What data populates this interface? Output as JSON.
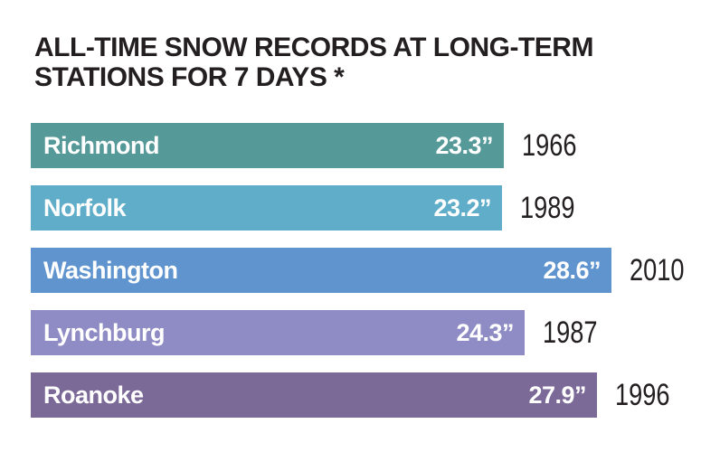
{
  "title": {
    "line1": "ALL-TIME SNOW RECORDS AT LONG-TERM",
    "line2": "STATIONS FOR 7 DAYS *"
  },
  "chart_data": {
    "type": "bar",
    "orientation": "horizontal",
    "title": "ALL-TIME SNOW RECORDS AT LONG-TERM STATIONS FOR 7 DAYS *",
    "unit": "inches",
    "categories": [
      "Richmond",
      "Norfolk",
      "Washington",
      "Lynchburg",
      "Roanoke"
    ],
    "values": [
      23.3,
      23.2,
      28.6,
      24.3,
      27.9
    ],
    "value_labels": [
      "23.3”",
      "23.2”",
      "28.6”",
      "24.3”",
      "27.9”"
    ],
    "years": [
      "1966",
      "1989",
      "2010",
      "1987",
      "1996"
    ],
    "bar_colors": [
      "#559998",
      "#60adca",
      "#6094cf",
      "#8f8cc5",
      "#7b6a97"
    ],
    "xlim": [
      0,
      33
    ],
    "grid": false,
    "legend": "none",
    "bar_text_color": "#ffffff",
    "year_text_color": "#231f20",
    "title_color": "#231f20"
  }
}
